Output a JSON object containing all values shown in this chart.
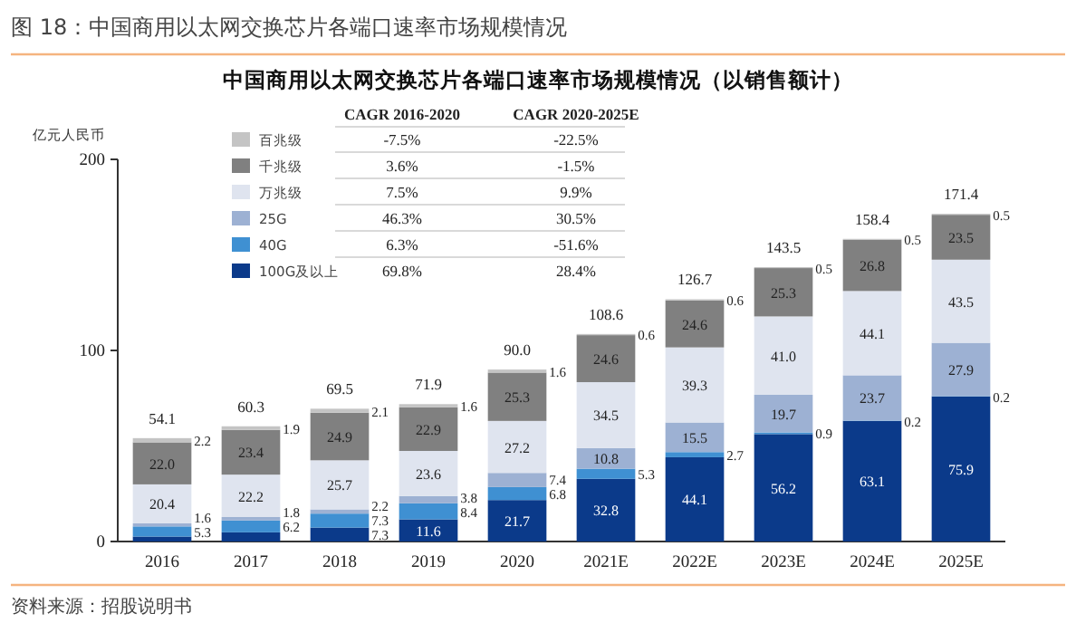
{
  "chart_data": {
    "type": "bar",
    "title": "图 18：中国商用以太网交换芯片各端口速率市场规模情况",
    "subtitle": "中国商用以太网交换芯片各端口速率市场规模情况（以销售额计）",
    "ylabel": "亿元人民币",
    "categories": [
      "2016",
      "2017",
      "2018",
      "2019",
      "2020",
      "2021E",
      "2022E",
      "2023E",
      "2024E",
      "2025E"
    ],
    "stacked": true,
    "ylim": [
      0,
      200
    ],
    "yticks": [
      0,
      100,
      200
    ],
    "grid": false,
    "legend": "top left",
    "series": [
      {
        "name": "100G及以上",
        "color": "#0b3a8a",
        "values": [
          2.6,
          4.8,
          7.3,
          11.6,
          21.7,
          32.8,
          44.1,
          56.2,
          63.1,
          75.9
        ],
        "value_labels": [
          null,
          null,
          "7.3",
          "11.6",
          "21.7",
          "32.8",
          "44.1",
          "56.2",
          "63.1",
          "75.9"
        ]
      },
      {
        "name": "40G",
        "color": "#3f90d2",
        "values": [
          5.3,
          6.2,
          7.3,
          8.4,
          6.8,
          5.3,
          2.7,
          0.9,
          0.2,
          0.2
        ],
        "value_labels": [
          "5.3",
          "6.2",
          "7.3",
          "8.4",
          "6.8",
          "5.3",
          "2.7",
          "0.9",
          "0.2",
          "0.2"
        ]
      },
      {
        "name": "25G",
        "color": "#9db1d3",
        "values": [
          1.6,
          1.8,
          2.2,
          3.8,
          7.4,
          10.8,
          15.5,
          19.7,
          23.7,
          27.9
        ],
        "value_labels": [
          "1.6",
          "1.8",
          "2.2",
          "3.8",
          "7.4",
          "10.8",
          "15.5",
          "19.7",
          "23.7",
          "27.9"
        ]
      },
      {
        "name": "万兆级",
        "color": "#dfe4ef",
        "values": [
          20.4,
          22.2,
          25.7,
          23.6,
          27.2,
          34.5,
          39.3,
          41.0,
          44.1,
          43.5
        ],
        "value_labels": [
          "20.4",
          "22.2",
          "25.7",
          "23.6",
          "27.2",
          "34.5",
          "39.3",
          "41.0",
          "44.1",
          "43.5"
        ]
      },
      {
        "name": "千兆级",
        "color": "#808080",
        "values": [
          22.0,
          23.4,
          24.9,
          22.9,
          25.3,
          24.6,
          24.6,
          25.3,
          26.8,
          23.5
        ],
        "value_labels": [
          "22.0",
          "23.4",
          "24.9",
          "22.9",
          "25.3",
          "24.6",
          "24.6",
          "25.3",
          "26.8",
          "23.5"
        ]
      },
      {
        "name": "百兆级",
        "color": "#c4c4c4",
        "values": [
          2.2,
          1.9,
          2.1,
          1.6,
          1.6,
          0.6,
          0.6,
          0.5,
          0.5,
          0.5
        ],
        "value_labels": [
          "2.2",
          "1.9",
          "2.1",
          "1.6",
          "1.6",
          "0.6",
          "0.6",
          "0.5",
          "0.5",
          "0.5"
        ]
      }
    ],
    "totals": [
      "54.1",
      "60.3",
      "69.5",
      "71.9",
      "90.0",
      "108.6",
      "126.7",
      "143.5",
      "158.4",
      "171.4"
    ],
    "annotations": [
      "CAGR 2016-2020",
      "CAGR 2020-2025E",
      "-7.5%",
      "-22.5%",
      "3.6%",
      "-1.5%",
      "7.5%",
      "9.9%",
      "46.3%",
      "30.5%",
      "6.3%",
      "-51.6%",
      "69.8%",
      "28.4%",
      "资料来源：招股说明书"
    ]
  }
}
